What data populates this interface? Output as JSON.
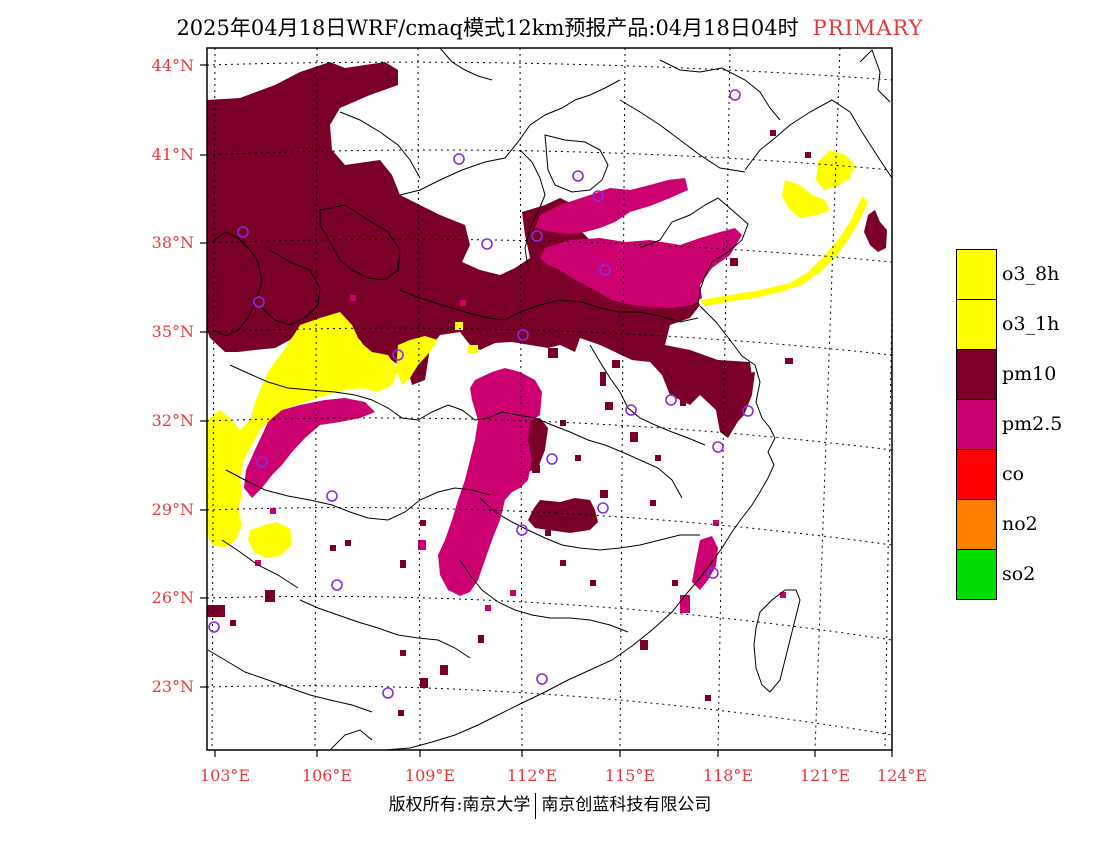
{
  "header": {
    "title": "2025年04月18日WRF/cmaq模式12km预报产品:04月18日04时",
    "tag": "PRIMARY"
  },
  "axes": {
    "lat_labels": [
      "44°N",
      "41°N",
      "38°N",
      "35°N",
      "32°N",
      "29°N",
      "26°N",
      "23°N"
    ],
    "lon_labels": [
      "103°E",
      "106°E",
      "109°E",
      "112°E",
      "115°E",
      "118°E",
      "121°E",
      "124°E"
    ]
  },
  "legend": {
    "items": [
      {
        "label": "o3_8h",
        "color": "#ffff00"
      },
      {
        "label": "o3_1h",
        "color": "#ffff00"
      },
      {
        "label": "pm10",
        "color": "#7a0028"
      },
      {
        "label": "pm2.5",
        "color": "#cc0070"
      },
      {
        "label": "co",
        "color": "#ff0000"
      },
      {
        "label": "no2",
        "color": "#ff8000"
      },
      {
        "label": "so2",
        "color": "#00dd00"
      }
    ]
  },
  "footer": {
    "left": "版权所有:南京大学",
    "right": "南京创蓝科技有限公司"
  },
  "colors": {
    "pm10": "#7a0028",
    "pm25": "#cc0070",
    "o3": "#ffff00",
    "station": "#8a2be2",
    "axis_label": "#e8393b"
  }
}
